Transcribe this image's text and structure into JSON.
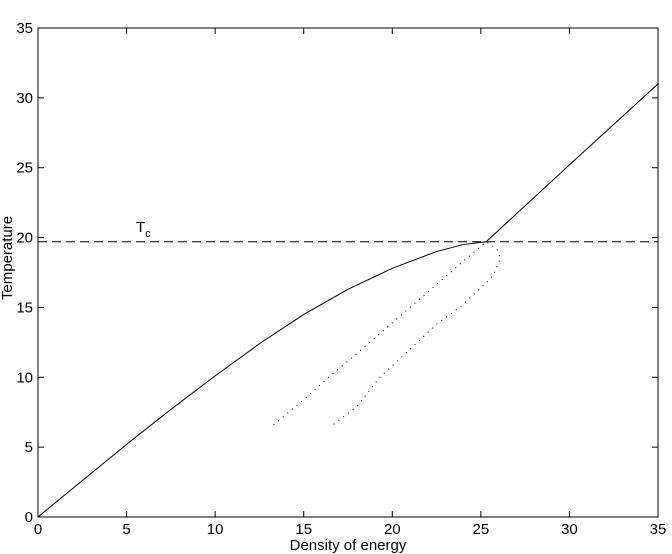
{
  "chart_data": {
    "type": "line",
    "xlabel": "Density of energy",
    "ylabel": "Temperature",
    "annotation": {
      "text": "T",
      "subscript": "c"
    },
    "xlim": [
      0,
      35
    ],
    "ylim": [
      0,
      35
    ],
    "xticks": [
      0,
      5,
      10,
      15,
      20,
      25,
      30,
      35
    ],
    "yticks": [
      0,
      5,
      10,
      15,
      20,
      25,
      30,
      35
    ],
    "grid": false,
    "series": [
      {
        "color": "#000000",
        "style": "solid",
        "x": [
          0,
          2.5,
          5,
          7.5,
          10,
          12.5,
          15,
          17.5,
          20,
          22.5,
          24,
          25.3,
          30,
          35
        ],
        "values": [
          0,
          2.6,
          5.2,
          7.7,
          10.1,
          12.4,
          14.5,
          16.3,
          17.8,
          19,
          19.5,
          19.7,
          25.2,
          31
        ]
      },
      {
        "color": "#000000",
        "style": "dotted",
        "x": [
          13.3,
          15,
          16.4,
          18,
          20,
          22,
          24,
          25.3,
          25.9,
          26.1,
          25.7,
          25,
          23.8,
          22.5,
          21,
          19.3,
          18,
          16.65
        ],
        "values": [
          6.6,
          8.4,
          10,
          11.7,
          13.9,
          16.1,
          18.3,
          19.7,
          19.2,
          18.5,
          17.3,
          16.4,
          15,
          13.8,
          12,
          10,
          7.9,
          6.6
        ]
      },
      {
        "color": "#000000",
        "style": "dashed",
        "x": [
          0,
          35
        ],
        "values": [
          19.7,
          19.7
        ]
      }
    ]
  }
}
